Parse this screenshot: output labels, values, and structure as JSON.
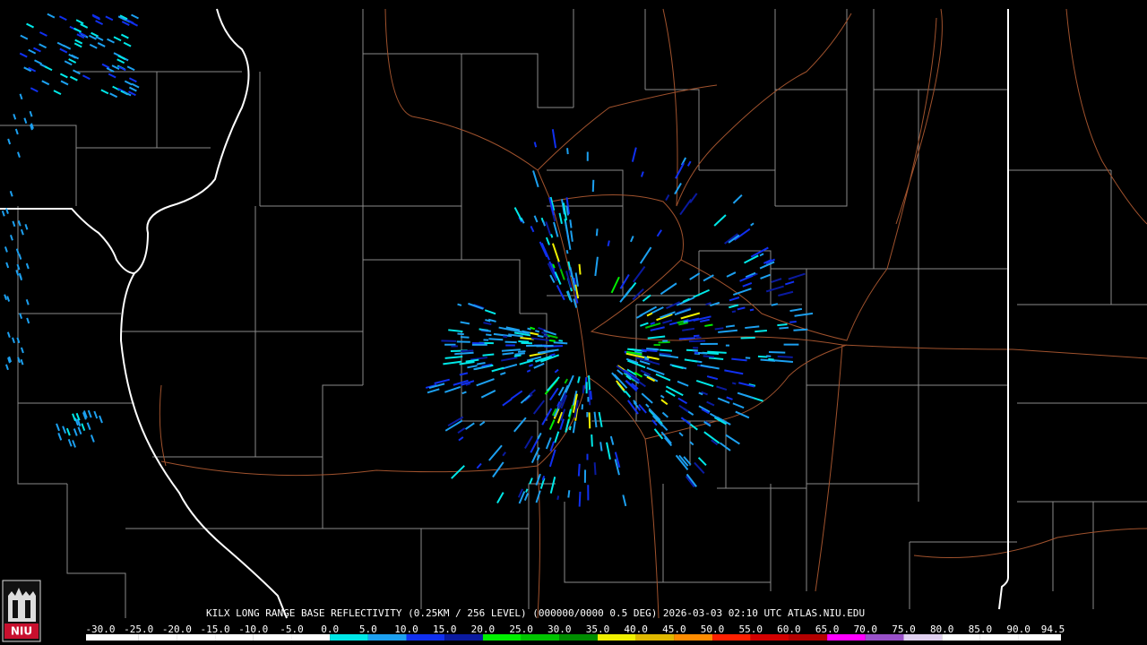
{
  "map": {
    "caption": "KILX LONG RANGE BASE REFLECTIVITY (0.25KM / 256 LEVEL) (000000/0000 0.5 DEG) 2026-03-03 02:10 UTC  ATLAS.NIU.EDU",
    "logo": "NIU",
    "colorbar": {
      "ticks": [
        {
          "value": -30,
          "label": "-30.0",
          "color": "#ffffff"
        },
        {
          "value": -25,
          "label": "-25.0",
          "color": "#ffffff"
        },
        {
          "value": -20,
          "label": "-20.0",
          "color": "#ffffff"
        },
        {
          "value": -15,
          "label": "-15.0",
          "color": "#ffffff"
        },
        {
          "value": -10,
          "label": "-10.0",
          "color": "#ffffff"
        },
        {
          "value": -5,
          "label": "-5.0",
          "color": "#ffffff"
        },
        {
          "value": 0,
          "label": "0.0",
          "color": "#00e8e8"
        },
        {
          "value": 5,
          "label": "5.0",
          "color": "#1ca0f0"
        },
        {
          "value": 10,
          "label": "10.0",
          "color": "#1030f0"
        },
        {
          "value": 15,
          "label": "15.0",
          "color": "#0a1aa0"
        },
        {
          "value": 20,
          "label": "20.0",
          "color": "#00f000"
        },
        {
          "value": 25,
          "label": "25.0",
          "color": "#00c400"
        },
        {
          "value": 30,
          "label": "30.0",
          "color": "#008c00"
        },
        {
          "value": 35,
          "label": "35.0",
          "color": "#f0f000"
        },
        {
          "value": 40,
          "label": "40.0",
          "color": "#e0b800"
        },
        {
          "value": 45,
          "label": "45.0",
          "color": "#ff8c00"
        },
        {
          "value": 50,
          "label": "50.0",
          "color": "#ff2000"
        },
        {
          "value": 55,
          "label": "55.0",
          "color": "#d40000"
        },
        {
          "value": 60,
          "label": "60.0",
          "color": "#b40000"
        },
        {
          "value": 65,
          "label": "65.0",
          "color": "#ff00ff"
        },
        {
          "value": 70,
          "label": "70.0",
          "color": "#9850c8"
        },
        {
          "value": 75,
          "label": "75.0",
          "color": "#e0d0f0"
        },
        {
          "value": 80,
          "label": "80.0",
          "color": "#ffffff"
        },
        {
          "value": 85,
          "label": "85.0",
          "color": "#ffffff"
        },
        {
          "value": 90,
          "label": "90.0",
          "color": "#ffffff"
        },
        {
          "value": 94.5,
          "label": "94.5",
          "color": "#ffffff"
        }
      ]
    }
  }
}
